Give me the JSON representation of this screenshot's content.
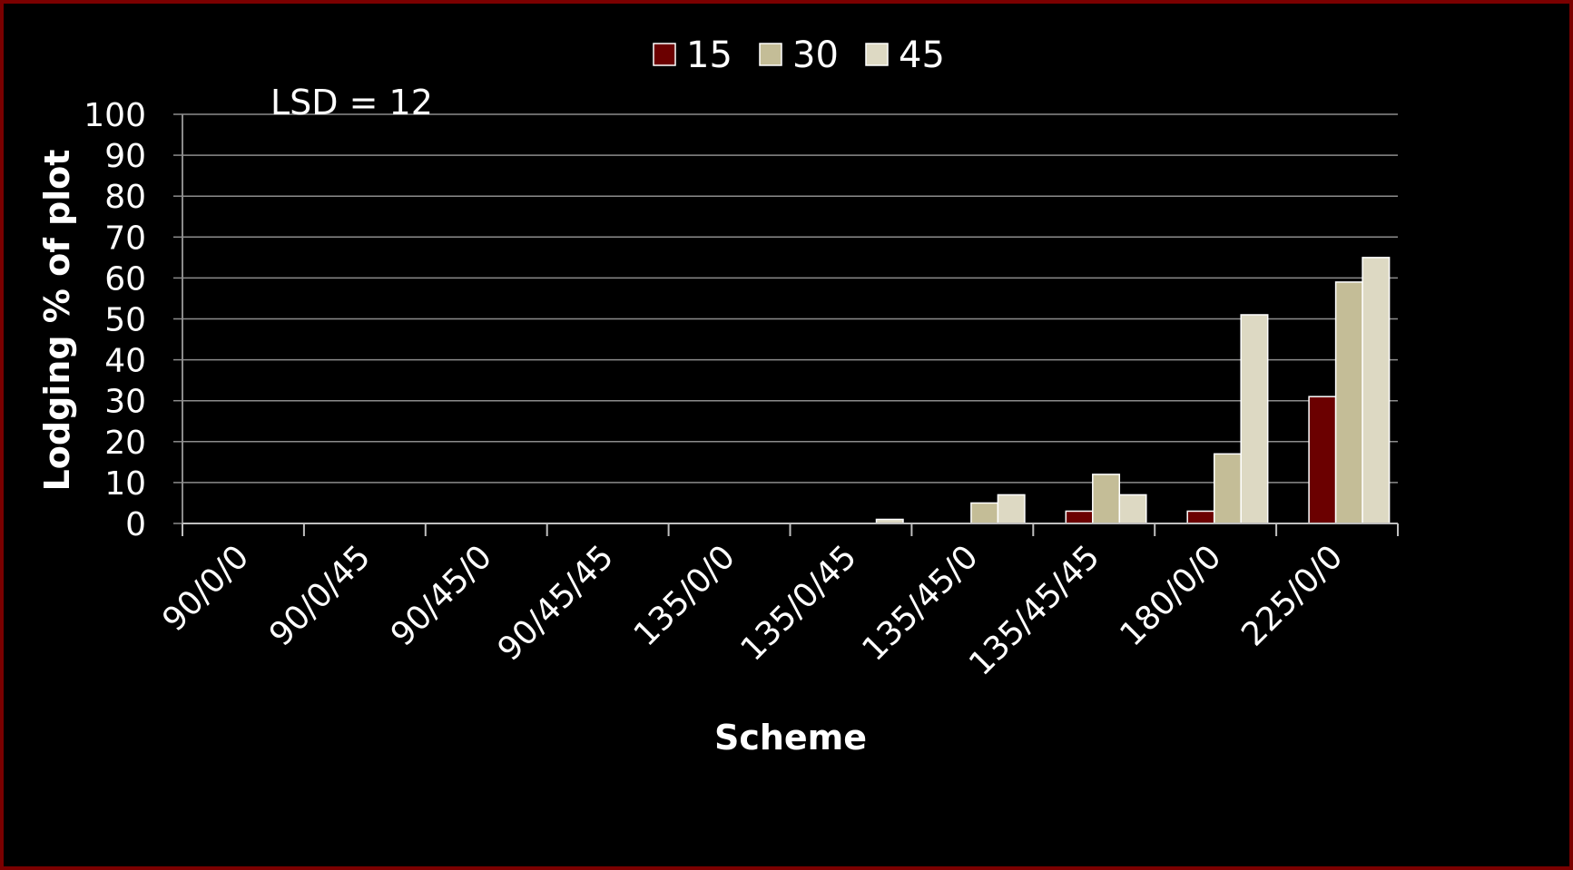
{
  "chart_data": {
    "type": "bar",
    "title": "",
    "xlabel": "Scheme",
    "ylabel": "Lodging % of plot",
    "ylim": [
      0,
      100
    ],
    "yticks": [
      0,
      10,
      20,
      30,
      40,
      50,
      60,
      70,
      80,
      90,
      100
    ],
    "grid": "horizontal",
    "legend_position": "top-center",
    "annotation": "LSD = 12",
    "categories": [
      "90/0/0",
      "90/0/45",
      "90/45/0",
      "90/45/45",
      "135/0/0",
      "135/0/45",
      "135/45/0",
      "135/45/45",
      "180/0/0",
      "225/0/0"
    ],
    "series": [
      {
        "name": "15",
        "color": "#6b0000",
        "values": [
          0,
          0,
          0,
          0,
          0,
          0,
          0,
          3,
          3,
          31
        ]
      },
      {
        "name": "30",
        "color": "#c4bd97",
        "values": [
          0,
          0,
          0,
          0,
          0,
          0,
          5,
          12,
          17,
          59
        ]
      },
      {
        "name": "45",
        "color": "#ddd9c3",
        "values": [
          0,
          0,
          0,
          0,
          0,
          1,
          7,
          7,
          51,
          65
        ]
      }
    ]
  }
}
